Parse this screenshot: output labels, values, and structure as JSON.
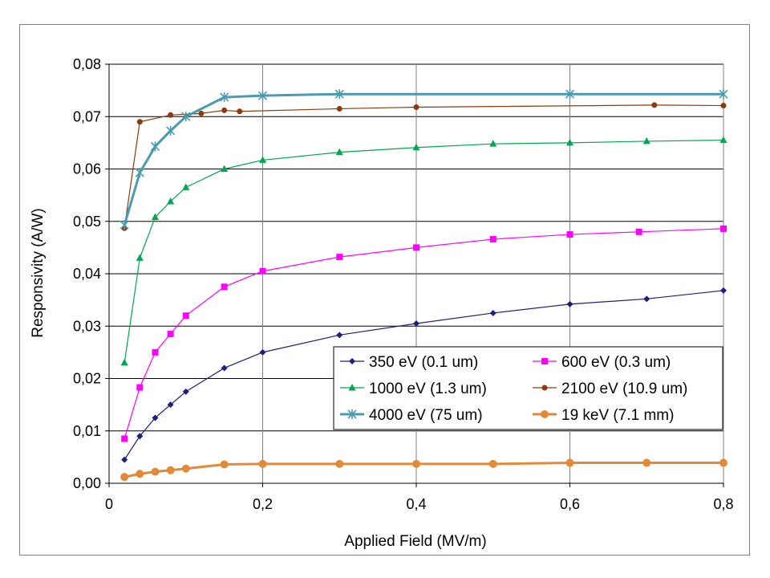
{
  "chart_data": {
    "type": "line",
    "title": "",
    "xlabel": "Applied Field (MV/m)",
    "ylabel": "Responsivity (A/W)",
    "xlim": [
      0,
      0.8
    ],
    "ylim": [
      0,
      0.08
    ],
    "x_ticks": [
      "0",
      "0,2",
      "0,4",
      "0,6",
      "0,8"
    ],
    "y_ticks": [
      "0,00",
      "0,01",
      "0,02",
      "0,03",
      "0,04",
      "0,05",
      "0,06",
      "0,07",
      "0,08"
    ],
    "grid": "vertical and horizontal major gridlines",
    "legend_position": "lower-right inside plot",
    "series": [
      {
        "name": "350 eV (0.1 um)",
        "color": "#1f1f7a",
        "marker": "diamond",
        "x": [
          0.02,
          0.04,
          0.06,
          0.08,
          0.1,
          0.15,
          0.2,
          0.3,
          0.4,
          0.5,
          0.6,
          0.7,
          0.8
        ],
        "y": [
          0.0045,
          0.009,
          0.0125,
          0.015,
          0.0175,
          0.022,
          0.025,
          0.0283,
          0.0305,
          0.0325,
          0.0342,
          0.0352,
          0.0368
        ]
      },
      {
        "name": "600 eV (0.3 um)",
        "color": "#ff00ff",
        "marker": "square",
        "x": [
          0.02,
          0.04,
          0.06,
          0.08,
          0.1,
          0.15,
          0.2,
          0.3,
          0.4,
          0.5,
          0.6,
          0.69,
          0.8
        ],
        "y": [
          0.0085,
          0.0183,
          0.025,
          0.0285,
          0.032,
          0.0375,
          0.0405,
          0.0432,
          0.045,
          0.0466,
          0.0475,
          0.048,
          0.0486
        ]
      },
      {
        "name": "1000 eV (1.3 um)",
        "color": "#00a651",
        "marker": "triangle",
        "x": [
          0.02,
          0.04,
          0.06,
          0.08,
          0.1,
          0.15,
          0.2,
          0.3,
          0.4,
          0.5,
          0.6,
          0.7,
          0.8
        ],
        "y": [
          0.023,
          0.043,
          0.0508,
          0.0538,
          0.0565,
          0.06,
          0.0617,
          0.0632,
          0.0641,
          0.0648,
          0.065,
          0.0653,
          0.0655
        ]
      },
      {
        "name": "2100 eV (10.9 um)",
        "color": "#8b3a0f",
        "marker": "circle",
        "x": [
          0.02,
          0.04,
          0.08,
          0.12,
          0.15,
          0.17,
          0.3,
          0.4,
          0.71,
          0.8
        ],
        "y": [
          0.0487,
          0.069,
          0.0703,
          0.0706,
          0.0712,
          0.071,
          0.0715,
          0.0718,
          0.0722,
          0.0721
        ]
      },
      {
        "name": "4000 eV (75 um)",
        "color": "#4a9ab0",
        "marker": "star",
        "x": [
          0.02,
          0.04,
          0.06,
          0.08,
          0.1,
          0.15,
          0.2,
          0.3,
          0.6,
          0.8
        ],
        "y": [
          0.0493,
          0.0593,
          0.0643,
          0.0673,
          0.07,
          0.0737,
          0.074,
          0.0743,
          0.0743,
          0.0743
        ]
      },
      {
        "name": "19 keV (7.1 mm)",
        "color": "#e38a38",
        "marker": "big-circle",
        "x": [
          0.02,
          0.04,
          0.06,
          0.08,
          0.1,
          0.15,
          0.2,
          0.3,
          0.4,
          0.5,
          0.6,
          0.7,
          0.8
        ],
        "y": [
          0.0012,
          0.0018,
          0.0022,
          0.0025,
          0.0028,
          0.0036,
          0.0037,
          0.0037,
          0.0037,
          0.0037,
          0.0039,
          0.0039,
          0.0039
        ]
      }
    ]
  }
}
